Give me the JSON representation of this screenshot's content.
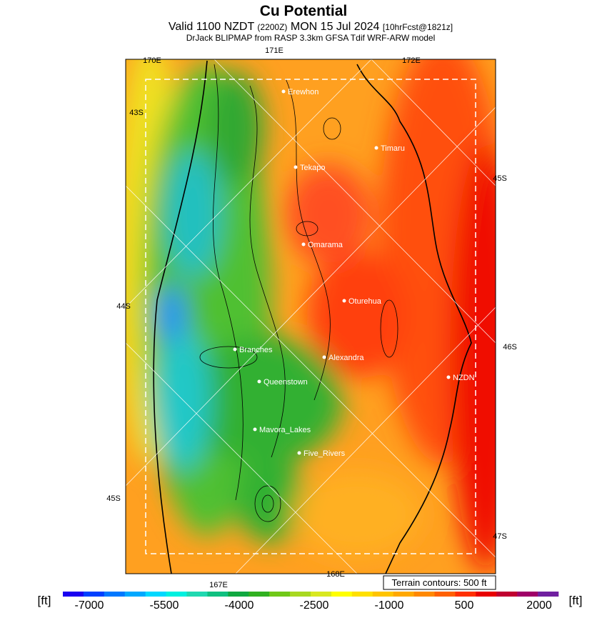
{
  "header": {
    "title": "Cu Potential",
    "line2": [
      "Valid 1100 NZDT",
      "(2200Z)",
      "MON 15 Jul 2024",
      "[10hrFcst@1821z]"
    ],
    "line3": "DrJack BLIPMAP from RASP 3.3km GFSA Tdif WRF-ARW model"
  },
  "grid_labels": [
    "170E",
    "171E",
    "172E",
    "43S",
    "44S",
    "45S",
    "45S",
    "46S",
    "47S",
    "167E",
    "168E"
  ],
  "places": [
    "Erewhon",
    "Timaru",
    "Tekapo",
    "Omarama",
    "Oturehua",
    "Branches",
    "Alexandra",
    "NZDN",
    "Queenstown",
    "Mavora_Lakes",
    "Five_Rivers"
  ],
  "terrain_note": "Terrain contours: 500 ft",
  "colorbar": {
    "unit": "[ft]",
    "colors": [
      "#1a00f0",
      "#0040ff",
      "#0078ff",
      "#00a8ff",
      "#00d8ff",
      "#00f0e0",
      "#20d8b0",
      "#10c080",
      "#10a840",
      "#30b020",
      "#70c818",
      "#a8d820",
      "#d8e820",
      "#ffff00",
      "#ffe000",
      "#ffc400",
      "#ffa800",
      "#ff8800",
      "#ff6000",
      "#ff3000",
      "#e80000",
      "#c00030",
      "#a00068",
      "#7020a0"
    ],
    "ticks": [
      "-7000",
      "-5500",
      "-4000",
      "-2500",
      "-1000",
      "500",
      "2000"
    ]
  }
}
